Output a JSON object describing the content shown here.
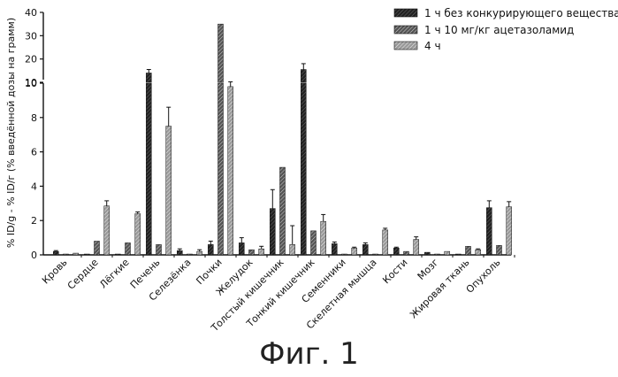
{
  "figure_caption": "Фиг. 1",
  "chart_data": {
    "type": "bar",
    "title": "",
    "xlabel": "",
    "ylabel": "% ID/g - % ID/г (% введённой дозы на грамм)",
    "y_axis_break": {
      "lower": [
        0,
        10
      ],
      "upper": [
        10,
        40
      ]
    },
    "lower_ticks": [
      "0",
      "2",
      "4",
      "6",
      "8",
      "10"
    ],
    "upper_ticks": [
      "10",
      "20",
      "30",
      "40"
    ],
    "categories": [
      "Кровь",
      "Сердце",
      "Лёгкие",
      "Печень",
      "Селезёнка",
      "Почки",
      "Желудок",
      "Толстый кишечник",
      "Тонкий кишечник",
      "Семенники",
      "Скелетная мышца",
      "Кости",
      "Мозг",
      "Жировая ткань",
      "Опухоль"
    ],
    "series": [
      {
        "name": "1 ч без конкурирующего вещества",
        "color": "#222222",
        "values": [
          0.2,
          0.05,
          0.05,
          14.0,
          0.25,
          0.6,
          0.7,
          2.7,
          15.5,
          0.65,
          0.6,
          0.4,
          0.15,
          0.05,
          2.75
        ],
        "errors": [
          0.05,
          0.02,
          0.02,
          1.5,
          0.1,
          0.2,
          0.3,
          1.1,
          2.5,
          0.1,
          0.1,
          0.05,
          0.02,
          0.02,
          0.4
        ]
      },
      {
        "name": "1 ч 10 мг/кг ацетазоламид",
        "color": "#555555",
        "values": [
          0.05,
          0.8,
          0.7,
          0.6,
          0.05,
          35.0,
          0.3,
          5.1,
          1.4,
          0.05,
          0.05,
          0.2,
          0.05,
          0.5,
          0.55
        ]
      },
      {
        "name": "4 ч",
        "color": "#999999",
        "values": [
          0.1,
          2.85,
          2.4,
          7.5,
          0.2,
          9.8,
          0.35,
          0.6,
          1.95,
          0.4,
          1.45,
          0.9,
          0.2,
          0.3,
          2.8
        ],
        "errors": [
          0.03,
          0.3,
          0.1,
          1.1,
          0.1,
          0.4,
          0.15,
          1.1,
          0.4,
          0.05,
          0.1,
          0.15,
          0.03,
          0.05,
          0.3
        ]
      }
    ],
    "legend_position": "top-right"
  }
}
